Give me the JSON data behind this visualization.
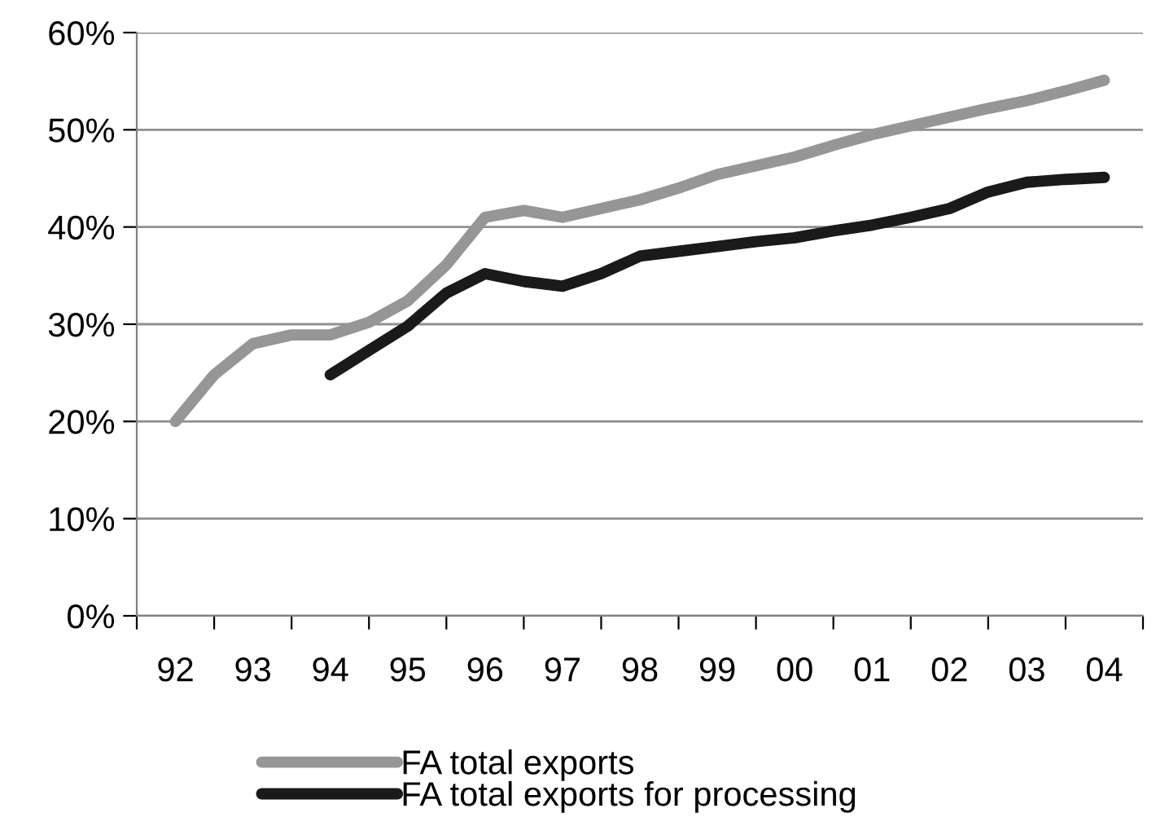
{
  "chart_data": {
    "type": "line",
    "categories": [
      "92",
      null,
      "93",
      null,
      "94",
      null,
      "95",
      null,
      "96",
      null,
      "97",
      null,
      "98",
      null,
      "99",
      null,
      "00",
      null,
      "01",
      null,
      "02",
      null,
      "03",
      null,
      "04"
    ],
    "ylim": [
      0,
      60
    ],
    "yticks": [
      {
        "value": 0,
        "label": "0%"
      },
      {
        "value": 10,
        "label": "10%"
      },
      {
        "value": 20,
        "label": "20%"
      },
      {
        "value": 30,
        "label": "30%"
      },
      {
        "value": 40,
        "label": "40%"
      },
      {
        "value": 50,
        "label": "50%"
      },
      {
        "value": 60,
        "label": "60%"
      }
    ],
    "grid": "y",
    "legend": "bottom",
    "line_style": "solid",
    "series": [
      {
        "name": "FA total exports",
        "color": "#969696",
        "values": [
          20,
          24.8,
          28,
          28.9,
          28.9,
          30.2,
          32.4,
          36.1,
          41,
          41.7,
          41,
          41.9,
          42.8,
          44,
          45.4,
          46.3,
          47.2,
          48.4,
          49.5,
          50.4,
          51.3,
          52.2,
          53,
          54,
          55.1
        ]
      },
      {
        "name": "FA total exports for processing",
        "color": "#1a1a1a",
        "values": [
          null,
          null,
          null,
          null,
          24.8,
          27.3,
          29.8,
          33.2,
          35.2,
          34.4,
          33.9,
          35.2,
          37,
          37.5,
          38,
          38.5,
          38.9,
          39.6,
          40.2,
          41,
          41.9,
          43.6,
          44.6,
          44.9,
          45.1
        ]
      }
    ]
  }
}
